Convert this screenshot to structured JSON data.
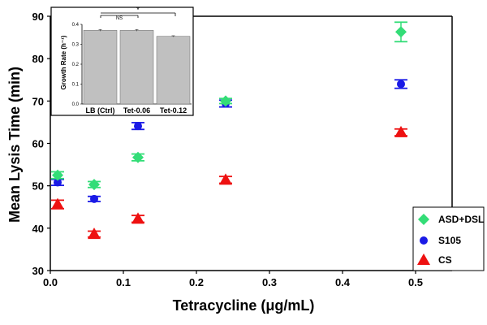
{
  "chart_data": [
    {
      "type": "scatter",
      "xlabel": "Tetracycline (μg/mL)",
      "ylabel": "Mean Lysis Time (min)",
      "xlim": [
        0,
        0.55
      ],
      "ylim": [
        30,
        90
      ],
      "xticks": [
        "0.0",
        "0.1",
        "0.2",
        "0.3",
        "0.4",
        "0.5"
      ],
      "yticks": [
        "30",
        "40",
        "50",
        "60",
        "70",
        "80",
        "90"
      ],
      "legend_position": "bottom-right",
      "series": [
        {
          "name": "ASD+DSL",
          "marker": "diamond",
          "color": "#33dd77",
          "points": [
            {
              "x": 0.01,
              "y": 52.5,
              "err": 0.8
            },
            {
              "x": 0.06,
              "y": 50.3,
              "err": 0.7
            },
            {
              "x": 0.12,
              "y": 56.7,
              "err": 0.8
            },
            {
              "x": 0.24,
              "y": 70.0,
              "err": 0.6
            },
            {
              "x": 0.48,
              "y": 86.3,
              "err": 2.3
            }
          ]
        },
        {
          "name": "S105",
          "marker": "circle",
          "color": "#1a1ae6",
          "points": [
            {
              "x": 0.01,
              "y": 50.8,
              "err": 0.7
            },
            {
              "x": 0.06,
              "y": 46.9,
              "err": 0.6
            },
            {
              "x": 0.12,
              "y": 64.1,
              "err": 0.8
            },
            {
              "x": 0.24,
              "y": 69.4,
              "err": 0.8
            },
            {
              "x": 0.48,
              "y": 74.0,
              "err": 1.0
            }
          ]
        },
        {
          "name": "CS",
          "marker": "triangle",
          "color": "#ee1111",
          "points": [
            {
              "x": 0.01,
              "y": 45.6,
              "err": 1.0
            },
            {
              "x": 0.06,
              "y": 38.6,
              "err": 0.7
            },
            {
              "x": 0.12,
              "y": 42.2,
              "err": 0.8
            },
            {
              "x": 0.24,
              "y": 51.4,
              "err": 0.8
            },
            {
              "x": 0.48,
              "y": 62.6,
              "err": 0.8
            }
          ]
        }
      ]
    },
    {
      "type": "bar",
      "ylabel": "Growth Rate (h⁻¹)",
      "categories": [
        "LB (Ctrl)",
        "Tet-0.06",
        "Tet-0.12"
      ],
      "values": [
        0.37,
        0.37,
        0.34
      ],
      "errors": [
        0.004,
        0.004,
        0.003
      ],
      "ylim": [
        0,
        0.4
      ],
      "yticks": [
        "0.0",
        "0.1",
        "0.2",
        "0.3",
        "0.4"
      ],
      "bar_color": "#c0c0c0",
      "annotations": [
        "NS",
        "*"
      ]
    }
  ]
}
